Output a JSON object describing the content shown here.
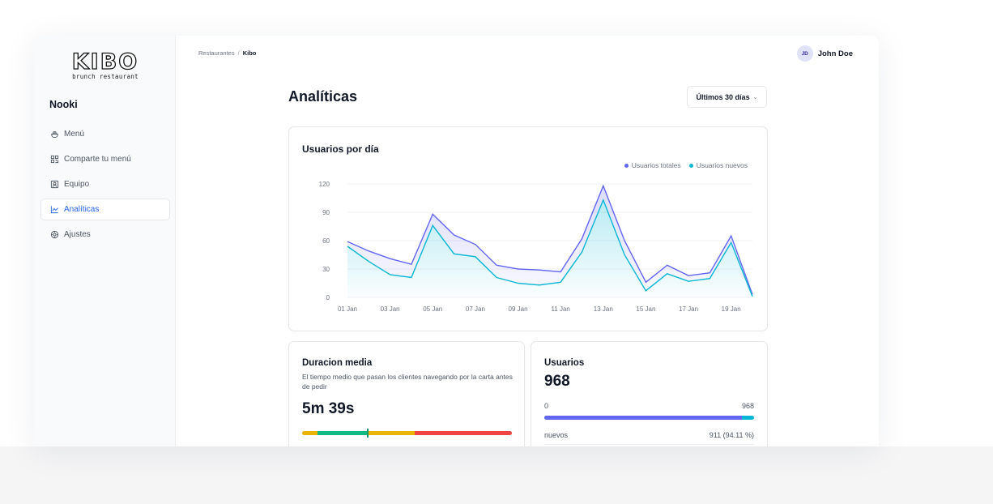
{
  "brand": {
    "logo_text": "KIBO",
    "logo_subtitle": "brunch restaurant"
  },
  "org_name": "Nooki",
  "sidebar": {
    "items": [
      {
        "label": "Menú",
        "icon": "menu-icon",
        "active": false
      },
      {
        "label": "Comparte tu menú",
        "icon": "qr-code-icon",
        "active": false
      },
      {
        "label": "Equipo",
        "icon": "team-icon",
        "active": false
      },
      {
        "label": "Analíticas",
        "icon": "chart-line-icon",
        "active": true
      },
      {
        "label": "Ajustes",
        "icon": "gear-icon",
        "active": false
      }
    ]
  },
  "breadcrumb": {
    "parent": "Restaurantes",
    "separator": "/",
    "current": "Kibo"
  },
  "user": {
    "initials": "JD",
    "name": "John Doe"
  },
  "page": {
    "title": "Analíticas",
    "range_label": "Últimos 30 días"
  },
  "colors": {
    "accent": "#2563eb",
    "series_total": "#6366f1",
    "series_new": "#06b6d4"
  },
  "chart_data": {
    "type": "area",
    "title": "Usuarios por día",
    "x": [
      "01 Jan",
      "02 Jan",
      "03 Jan",
      "04 Jan",
      "05 Jan",
      "06 Jan",
      "07 Jan",
      "08 Jan",
      "09 Jan",
      "10 Jan",
      "11 Jan",
      "12 Jan",
      "13 Jan",
      "14 Jan",
      "15 Jan",
      "16 Jan",
      "17 Jan",
      "18 Jan",
      "19 Jan",
      "20 Jan"
    ],
    "x_tick_labels": [
      "01 Jan",
      "03 Jan",
      "05 Jan",
      "07 Jan",
      "09 Jan",
      "11 Jan",
      "13 Jan",
      "15 Jan",
      "17 Jan",
      "19 Jan"
    ],
    "series": [
      {
        "name": "Usuarios totales",
        "color": "#6366f1",
        "values": [
          59,
          49,
          41,
          35,
          88,
          66,
          56,
          34,
          30,
          29,
          27,
          62,
          118,
          60,
          16,
          34,
          23,
          26,
          65,
          3
        ]
      },
      {
        "name": "Usuarios nuevos",
        "color": "#06b6d4",
        "values": [
          54,
          38,
          24,
          21,
          76,
          46,
          43,
          21,
          15,
          13,
          16,
          48,
          103,
          45,
          7,
          25,
          17,
          20,
          58,
          1
        ]
      }
    ],
    "ylim": [
      0,
      120
    ],
    "yticks": [
      0,
      30,
      60,
      90,
      120
    ],
    "grid": true,
    "legend": "top-right"
  },
  "duration": {
    "title": "Duracion media",
    "description": "El tiempo medio que pasan los clientes navegando por la carta antes de pedir",
    "value": "5m 39s",
    "marker_fraction": 0.31,
    "segments": [
      {
        "fraction": 0.075,
        "color": "#eab308"
      },
      {
        "fraction": 0.235,
        "color": "#10b981"
      },
      {
        "fraction": 0.225,
        "color": "#eab308"
      },
      {
        "fraction": 0.465,
        "color": "#ef4444"
      }
    ]
  },
  "users": {
    "title": "Usuarios",
    "total": "968",
    "scale_min": "0",
    "scale_max": "968",
    "new_fraction": 0.9411,
    "rows": [
      {
        "label": "nuevos",
        "value": "911 (94.11 %)"
      }
    ]
  }
}
